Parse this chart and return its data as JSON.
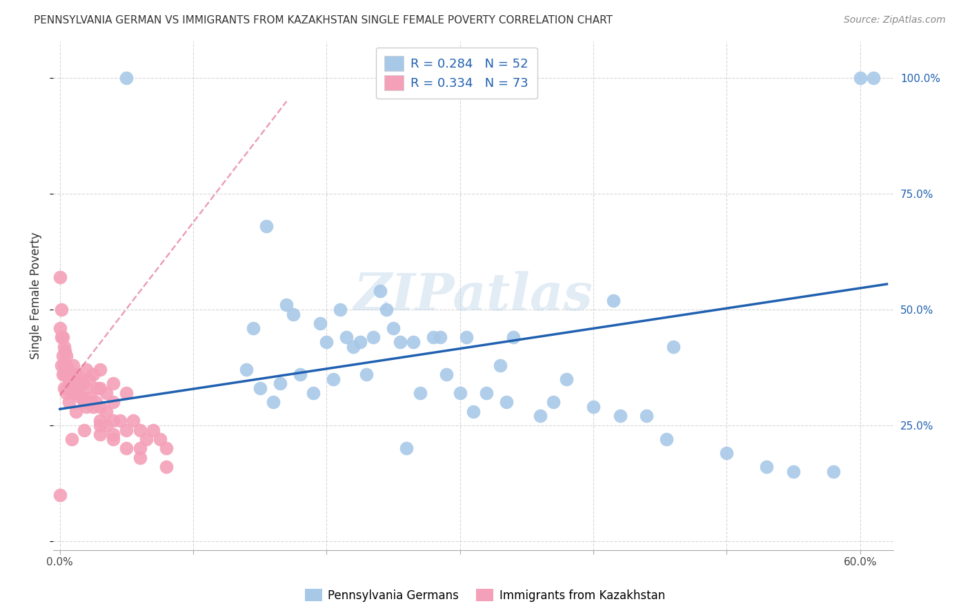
{
  "title": "PENNSYLVANIA GERMAN VS IMMIGRANTS FROM KAZAKHSTAN SINGLE FEMALE POVERTY CORRELATION CHART",
  "source": "Source: ZipAtlas.com",
  "ylabel": "Single Female Poverty",
  "blue_R": 0.284,
  "blue_N": 52,
  "pink_R": 0.334,
  "pink_N": 73,
  "blue_color": "#a8c8e8",
  "pink_color": "#f4a0b8",
  "blue_line_color": "#2060b0",
  "pink_line_color": "#e06080",
  "stat_text_color": "#2060b0",
  "watermark": "ZIPatlas",
  "xlim": [
    -0.005,
    0.625
  ],
  "ylim": [
    -0.02,
    1.08
  ],
  "blue_scatter_x": [
    0.05,
    0.155,
    0.17,
    0.175,
    0.18,
    0.195,
    0.2,
    0.205,
    0.21,
    0.215,
    0.22,
    0.225,
    0.23,
    0.235,
    0.24,
    0.245,
    0.25,
    0.255,
    0.27,
    0.28,
    0.285,
    0.29,
    0.3,
    0.305,
    0.31,
    0.32,
    0.33,
    0.335,
    0.34,
    0.36,
    0.37,
    0.38,
    0.4,
    0.42,
    0.44,
    0.455,
    0.46,
    0.5,
    0.53,
    0.55,
    0.58,
    0.6,
    0.14,
    0.145,
    0.15,
    0.16,
    0.165,
    0.19,
    0.26,
    0.265,
    0.415,
    0.61
  ],
  "blue_scatter_y": [
    1.0,
    0.68,
    0.51,
    0.49,
    0.36,
    0.47,
    0.43,
    0.35,
    0.5,
    0.44,
    0.42,
    0.43,
    0.36,
    0.44,
    0.54,
    0.5,
    0.46,
    0.43,
    0.32,
    0.44,
    0.44,
    0.36,
    0.32,
    0.44,
    0.28,
    0.32,
    0.38,
    0.3,
    0.44,
    0.27,
    0.3,
    0.35,
    0.29,
    0.27,
    0.27,
    0.22,
    0.42,
    0.19,
    0.16,
    0.15,
    0.15,
    1.0,
    0.37,
    0.46,
    0.33,
    0.3,
    0.34,
    0.32,
    0.2,
    0.43,
    0.52,
    1.0
  ],
  "pink_scatter_x": [
    0.0,
    0.0,
    0.001,
    0.001,
    0.001,
    0.002,
    0.002,
    0.002,
    0.003,
    0.003,
    0.003,
    0.004,
    0.004,
    0.005,
    0.005,
    0.005,
    0.006,
    0.006,
    0.007,
    0.008,
    0.009,
    0.01,
    0.01,
    0.01,
    0.012,
    0.013,
    0.015,
    0.016,
    0.017,
    0.018,
    0.02,
    0.02,
    0.02,
    0.022,
    0.023,
    0.025,
    0.025,
    0.027,
    0.028,
    0.03,
    0.03,
    0.03,
    0.03,
    0.03,
    0.035,
    0.035,
    0.04,
    0.04,
    0.04,
    0.04,
    0.045,
    0.05,
    0.05,
    0.055,
    0.06,
    0.06,
    0.065,
    0.07,
    0.075,
    0.08,
    0.08,
    0.005,
    0.007,
    0.009,
    0.012,
    0.018,
    0.022,
    0.03,
    0.035,
    0.04,
    0.05,
    0.06,
    0.0
  ],
  "pink_scatter_y": [
    0.57,
    0.1,
    0.5,
    0.44,
    0.38,
    0.44,
    0.4,
    0.36,
    0.42,
    0.38,
    0.33,
    0.41,
    0.36,
    0.4,
    0.36,
    0.32,
    0.37,
    0.33,
    0.34,
    0.36,
    0.33,
    0.38,
    0.35,
    0.32,
    0.36,
    0.32,
    0.35,
    0.31,
    0.34,
    0.3,
    0.37,
    0.33,
    0.29,
    0.35,
    0.31,
    0.36,
    0.29,
    0.3,
    0.33,
    0.37,
    0.33,
    0.29,
    0.26,
    0.23,
    0.32,
    0.28,
    0.34,
    0.3,
    0.26,
    0.23,
    0.26,
    0.32,
    0.24,
    0.26,
    0.24,
    0.2,
    0.22,
    0.24,
    0.22,
    0.2,
    0.16,
    0.38,
    0.3,
    0.22,
    0.28,
    0.24,
    0.3,
    0.25,
    0.25,
    0.22,
    0.2,
    0.18,
    0.46
  ],
  "blue_line_x0": 0.0,
  "blue_line_x1": 0.62,
  "blue_line_y0": 0.285,
  "blue_line_y1": 0.555,
  "pink_line_x0": 0.0,
  "pink_line_x1": 0.17,
  "pink_line_y0": 0.315,
  "pink_line_y1": 0.95
}
